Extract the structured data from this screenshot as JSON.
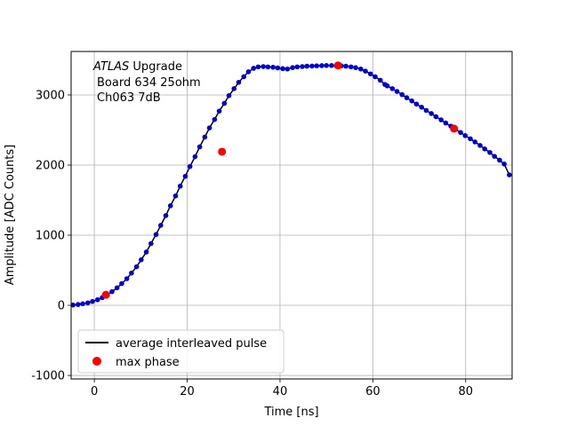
{
  "chart_data": {
    "type": "scatter",
    "xlabel": "Time [ns]",
    "ylabel": "Amplitude [ADC Counts]",
    "xlim": [
      -5,
      90
    ],
    "ylim": [
      -1050,
      3620
    ],
    "x_ticks": [
      0,
      20,
      40,
      60,
      80
    ],
    "y_ticks": [
      -1000,
      0,
      1000,
      2000,
      3000
    ],
    "grid": true,
    "annotation": {
      "line1_italic": "ATLAS",
      "line1_rest": " Upgrade",
      "line2": "Board 634 25ohm",
      "line3": "Ch063 7dB"
    },
    "legend": {
      "placement": "lower-left",
      "entries": [
        {
          "label": "average interleaved pulse",
          "style": "line",
          "color": "#000000"
        },
        {
          "label": "max phase",
          "style": "marker",
          "color": "#ff0000"
        }
      ]
    },
    "colors": {
      "pulse_points": "#0000cc",
      "pulse_line": "#000000",
      "max_phase": "#ff0000"
    },
    "series": [
      {
        "style": "points",
        "x": [
          -4.6,
          -3.5,
          -2.5,
          -1.4,
          -0.4,
          0.7,
          1.7,
          2.8,
          3.8,
          4.9,
          5.9,
          7.0,
          8.0,
          9.1,
          10.1,
          11.2,
          12.2,
          13.3,
          14.3,
          15.4,
          16.4,
          17.5,
          18.5,
          19.6,
          20.6,
          21.7,
          22.7,
          23.8,
          24.8,
          25.9,
          26.9,
          28.0,
          29.0,
          30.1,
          31.1,
          32.2,
          33.2,
          34.3,
          35.3,
          36.4,
          37.4,
          38.5,
          39.5,
          40.6,
          41.6,
          42.7,
          43.7,
          44.8,
          45.8,
          46.9,
          47.9,
          49.0,
          50.0,
          51.1,
          52.1,
          53.2,
          54.2,
          55.3,
          56.3,
          57.4,
          58.4,
          59.5,
          60.5,
          61.6,
          62.6,
          63.1,
          64.2,
          65.2,
          66.3,
          67.3,
          68.4,
          69.4,
          70.5,
          71.5,
          72.6,
          73.6,
          74.7,
          75.7,
          76.8,
          77.8,
          78.9,
          79.9,
          81.0,
          82.0,
          83.1,
          84.1,
          85.2,
          86.2,
          87.3,
          88.3,
          89.4
        ],
        "y": [
          5,
          12,
          22,
          35,
          55,
          80,
          110,
          150,
          195,
          250,
          310,
          380,
          460,
          550,
          650,
          760,
          880,
          1010,
          1140,
          1280,
          1420,
          1560,
          1700,
          1840,
          1980,
          2120,
          2260,
          2400,
          2530,
          2650,
          2770,
          2880,
          2990,
          3090,
          3180,
          3260,
          3330,
          3380,
          3400,
          3405,
          3400,
          3395,
          3385,
          3375,
          3370,
          3390,
          3400,
          3405,
          3410,
          3412,
          3415,
          3418,
          3420,
          3420,
          3418,
          3415,
          3410,
          3400,
          3390,
          3370,
          3340,
          3300,
          3260,
          3210,
          3150,
          3130,
          3090,
          3050,
          3005,
          2960,
          2915,
          2870,
          2825,
          2780,
          2735,
          2690,
          2645,
          2600,
          2555,
          2510,
          2465,
          2420,
          2375,
          2330,
          2280,
          2230,
          2180,
          2125,
          2070,
          2015,
          1860
        ]
      },
      {
        "name": "max phase",
        "style": "marker",
        "x": [
          2.5,
          27.5,
          52.5,
          77.5
        ],
        "y": [
          150,
          2190,
          3420,
          2520
        ]
      }
    ]
  }
}
